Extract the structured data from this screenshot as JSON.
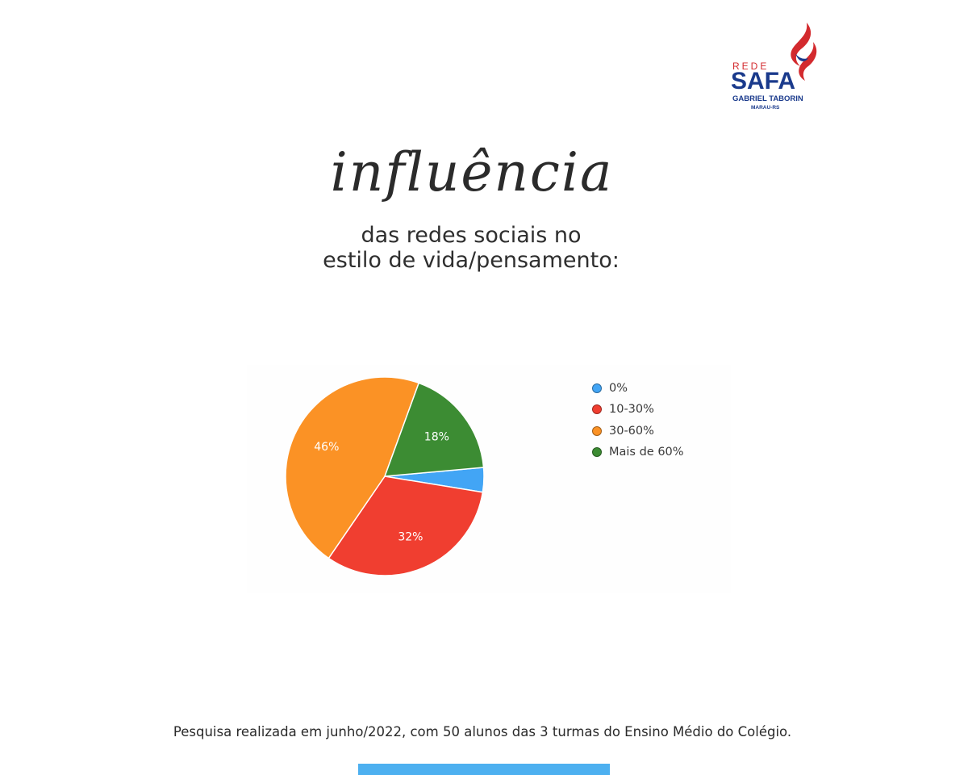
{
  "logo": {
    "rede": "REDE",
    "safa": "SAFA",
    "gabriel": "GABRIEL TABORIN",
    "city": "MARAU-RS",
    "colors": {
      "red": "#d32a2e",
      "blue": "#1a3a8c"
    }
  },
  "heading": {
    "script": "influência",
    "line1": "das redes sociais no",
    "line2": "estilo de vida/pensamento:"
  },
  "chart_data": {
    "type": "pie",
    "legend_position": "right",
    "slices": [
      {
        "label": "0%",
        "value": 4,
        "color": "#42a5f5",
        "data_label": ""
      },
      {
        "label": "10-30%",
        "value": 32,
        "color": "#f03e30",
        "data_label": "32%"
      },
      {
        "label": "30-60%",
        "value": 46,
        "color": "#fb9225",
        "data_label": "46%"
      },
      {
        "label": "Mais de 60%",
        "value": 18,
        "color": "#3c8c33",
        "data_label": "18%"
      }
    ]
  },
  "footnote": "Pesquisa realizada em junho/2022, com 50 alunos das 3 turmas do Ensino Médio do Colégio.",
  "accent_bar_color": "#4db0f0"
}
